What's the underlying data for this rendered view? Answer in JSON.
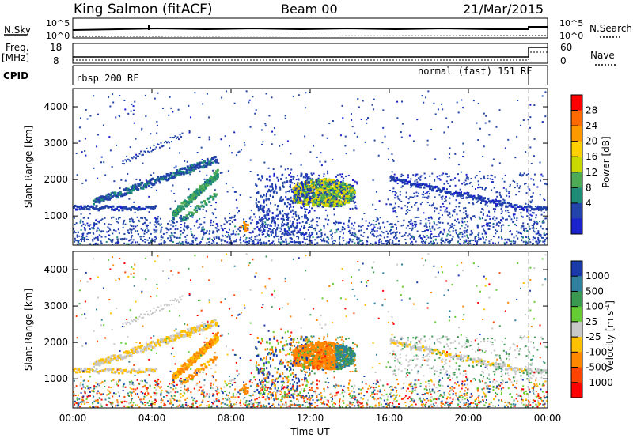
{
  "header": {
    "station": "King Salmon (fitACF)",
    "beam": "Beam 00",
    "date": "21/Mar/2015"
  },
  "noise_panel": {
    "left_label": "N.Sky",
    "right_label": "N.Search",
    "left_ticks": [
      "10^5",
      "10^0"
    ],
    "right_ticks": [
      "10^5",
      "10^0"
    ]
  },
  "freq_panel": {
    "left_label_1": "Freq.",
    "left_label_2": "[MHz]",
    "right_label": "Nave",
    "left_ticks": [
      "18",
      "8"
    ],
    "right_ticks": [
      "60",
      "0"
    ]
  },
  "cpid_panel": {
    "label": "CPID",
    "left_program": "rbsp 200 RF",
    "right_program": "normal (fast) 151 RF"
  },
  "chart_data": [
    {
      "type": "heatmap",
      "quantity": "Power",
      "colorbar_label": "Power [dB]",
      "colorbar_ticks": [
        "28",
        "24",
        "20",
        "16",
        "12",
        "8",
        "4"
      ],
      "colorbar_colors": [
        "#ff0000",
        "#ff6a00",
        "#ff9900",
        "#ffd000",
        "#c8d800",
        "#4daa55",
        "#1f8c78",
        "#2244aa",
        "#1a22cc"
      ],
      "ylabel": "Slant Range [km]",
      "yticks": [
        1000,
        2000,
        3000,
        4000
      ],
      "ylim": [
        200,
        4500
      ],
      "features": [
        {
          "name": "band",
          "t0": 0.0,
          "t1": 4.0,
          "r0": 1200,
          "r1": 1250,
          "level": 6
        },
        {
          "name": "arc1",
          "t0": 1.0,
          "t1": 7.0,
          "r0": 1400,
          "r1": 2600,
          "level": 6
        },
        {
          "name": "arc2",
          "t0": 5.0,
          "t1": 7.2,
          "r0": 1000,
          "r1": 2300,
          "level": 5
        },
        {
          "name": "blob",
          "t0": 11.2,
          "t1": 14.0,
          "r0": 1250,
          "r1": 2000,
          "level": 3
        },
        {
          "name": "tail",
          "t0": 16.0,
          "t1": 24.0,
          "r0": 1200,
          "r1": 2100,
          "level": 7
        }
      ]
    },
    {
      "type": "heatmap",
      "quantity": "Velocity",
      "colorbar_label": "Velocity [m s",
      "colorbar_label_sup": "-1",
      "colorbar_label_end": "]",
      "colorbar_ticks": [
        "1000",
        "500",
        "100",
        "25",
        "-25",
        "-100",
        "-500",
        "-1000"
      ],
      "colorbar_colors": [
        "#1a3aaa",
        "#3080a0",
        "#3a9a50",
        "#66cc33",
        "#c8c8c8",
        "#ffc000",
        "#ff8800",
        "#ff4400",
        "#ff0000"
      ],
      "ylabel": "Slant Range [km]",
      "yticks": [
        1000,
        2000,
        3000,
        4000
      ],
      "ylim": [
        200,
        4500
      ],
      "xlabel": "Time UT",
      "xticks": [
        "00:00",
        "04:00",
        "08:00",
        "12:00",
        "16:00",
        "20:00",
        "00:00"
      ],
      "xlim": [
        0,
        24
      ]
    }
  ]
}
